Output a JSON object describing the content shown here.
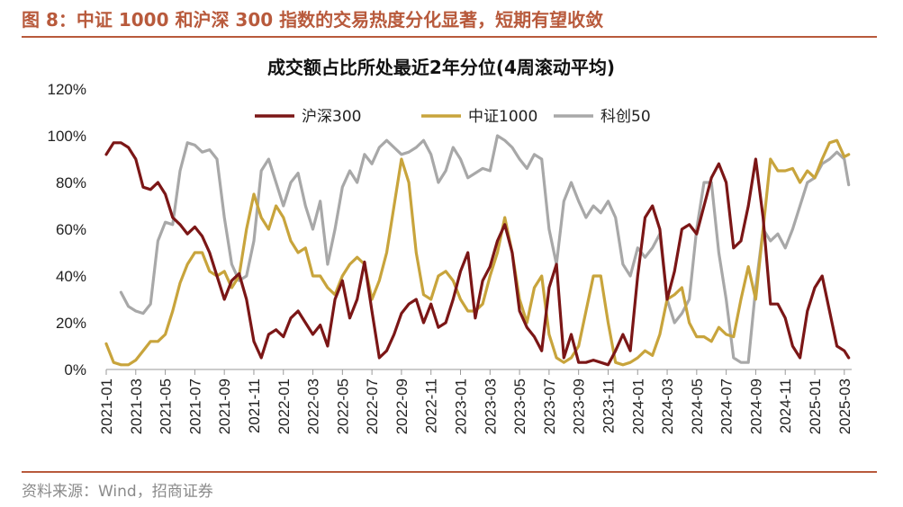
{
  "figure": {
    "title": "图 8：中证 1000 和沪深 300 指数的交易热度分化显著，短期有望收敛",
    "source": "资料来源：Wind，招商证券"
  },
  "colors": {
    "accent": "#b85a3c",
    "hs300": "#7b1616",
    "zz1000": "#c8a43c",
    "kc50": "#a8a8a8"
  },
  "chart_data": {
    "type": "line",
    "title": "成交额占比所处最近2年分位(4周滚动平均)",
    "xlabel": "",
    "ylabel": "",
    "ylim": [
      0,
      120
    ],
    "yticks": [
      "0%",
      "20%",
      "40%",
      "60%",
      "80%",
      "100%",
      "120%"
    ],
    "xlim": [
      0,
      50.5
    ],
    "categories": [
      "2021-01",
      "2021-03",
      "2021-05",
      "2021-07",
      "2021-09",
      "2021-11",
      "2022-01",
      "2022-03",
      "2022-05",
      "2022-07",
      "2022-09",
      "2022-11",
      "2023-01",
      "2023-03",
      "2023-05",
      "2023-07",
      "2023-09",
      "2023-11",
      "2024-01",
      "2024-03",
      "2024-05",
      "2024-07",
      "2024-09",
      "2024-11",
      "2025-01",
      "2025-03"
    ],
    "legend": [
      "沪深300",
      "中证1000",
      "科创50"
    ],
    "series": [
      {
        "name": "沪深300",
        "x": [
          0,
          0.5,
          1,
          1.5,
          2,
          2.5,
          3,
          3.5,
          4,
          4.5,
          5,
          5.5,
          6,
          6.5,
          7,
          7.5,
          8,
          8.5,
          9,
          9.5,
          10,
          10.5,
          11,
          11.5,
          12,
          12.5,
          13,
          13.5,
          14,
          14.5,
          15,
          15.5,
          16,
          16.5,
          17,
          17.5,
          18,
          18.5,
          19,
          19.5,
          20,
          20.5,
          21,
          21.5,
          22,
          22.5,
          23,
          23.5,
          24,
          24.5,
          25,
          25.5,
          26,
          26.5,
          27,
          27.5,
          28,
          28.5,
          29,
          29.5,
          30,
          30.5,
          31,
          31.5,
          32,
          32.5,
          33,
          33.5,
          34,
          34.5,
          35,
          35.5,
          36,
          36.5,
          37,
          37.5,
          38,
          38.5,
          39,
          39.5,
          40,
          40.5,
          41,
          41.5,
          42,
          42.5,
          43,
          43.5,
          44,
          44.5,
          45,
          45.5,
          46,
          46.5,
          47,
          47.5,
          48,
          48.5,
          49,
          49.5,
          50,
          50.3
        ],
        "values": [
          92,
          97,
          97,
          95,
          90,
          78,
          77,
          80,
          75,
          65,
          62,
          58,
          61,
          57,
          50,
          40,
          30,
          38,
          41,
          30,
          12,
          5,
          15,
          17,
          14,
          22,
          25,
          20,
          15,
          19,
          10,
          30,
          38,
          22,
          30,
          46,
          25,
          5,
          8,
          15,
          24,
          28,
          30,
          20,
          28,
          18,
          20,
          30,
          42,
          50,
          22,
          38,
          44,
          55,
          62,
          50,
          25,
          18,
          14,
          8,
          35,
          45,
          5,
          15,
          3,
          3,
          4,
          3,
          2,
          8,
          15,
          8,
          40,
          65,
          70,
          60,
          30,
          42,
          60,
          62,
          58,
          70,
          82,
          88,
          80,
          52,
          55,
          70,
          90,
          65,
          28,
          28,
          22,
          10,
          5,
          25,
          35,
          40,
          25,
          10,
          8,
          5
        ]
      },
      {
        "name": "中证1000",
        "x": [
          0,
          0.5,
          1,
          1.5,
          2,
          2.5,
          3,
          3.5,
          4,
          4.5,
          5,
          5.5,
          6,
          6.5,
          7,
          7.5,
          8,
          8.5,
          9,
          9.5,
          10,
          10.5,
          11,
          11.5,
          12,
          12.5,
          13,
          13.5,
          14,
          14.5,
          15,
          15.5,
          16,
          16.5,
          17,
          17.5,
          18,
          18.5,
          19,
          19.5,
          20,
          20.5,
          21,
          21.5,
          22,
          22.5,
          23,
          23.5,
          24,
          24.5,
          25,
          25.5,
          26,
          26.5,
          27,
          27.5,
          28,
          28.5,
          29,
          29.5,
          30,
          30.5,
          31,
          31.5,
          32,
          32.5,
          33,
          33.5,
          34,
          34.5,
          35,
          35.5,
          36,
          36.5,
          37,
          37.5,
          38,
          38.5,
          39,
          39.5,
          40,
          40.5,
          41,
          41.5,
          42,
          42.5,
          43,
          43.5,
          44,
          44.5,
          45,
          45.5,
          46,
          46.5,
          47,
          47.5,
          48,
          48.5,
          49,
          49.5,
          50,
          50.3
        ],
        "values": [
          11,
          3,
          2,
          2,
          4,
          8,
          12,
          12,
          15,
          25,
          37,
          45,
          50,
          50,
          42,
          40,
          42,
          35,
          40,
          60,
          75,
          65,
          60,
          70,
          65,
          55,
          50,
          52,
          40,
          40,
          35,
          32,
          40,
          45,
          48,
          45,
          30,
          38,
          50,
          70,
          90,
          80,
          50,
          32,
          30,
          40,
          42,
          38,
          30,
          25,
          25,
          28,
          40,
          50,
          65,
          50,
          30,
          20,
          35,
          40,
          15,
          5,
          3,
          5,
          10,
          25,
          40,
          40,
          20,
          3,
          2,
          3,
          5,
          8,
          6,
          15,
          30,
          32,
          35,
          20,
          14,
          14,
          12,
          18,
          15,
          14,
          30,
          44,
          30,
          60,
          90,
          85,
          85,
          86,
          80,
          85,
          82,
          90,
          97,
          98,
          91,
          92
        ]
      },
      {
        "name": "科创50",
        "x": [
          1,
          1.5,
          2,
          2.5,
          3,
          3.5,
          4,
          4.5,
          5,
          5.5,
          6,
          6.5,
          7,
          7.5,
          8,
          8.5,
          9,
          9.5,
          10,
          10.5,
          11,
          11.5,
          12,
          12.5,
          13,
          13.5,
          14,
          14.5,
          15,
          15.5,
          16,
          16.5,
          17,
          17.5,
          18,
          18.5,
          19,
          19.5,
          20,
          20.5,
          21,
          21.5,
          22,
          22.5,
          23,
          23.5,
          24,
          24.5,
          25,
          25.5,
          26,
          26.5,
          27,
          27.5,
          28,
          28.5,
          29,
          29.5,
          30,
          30.5,
          31,
          31.5,
          32,
          32.5,
          33,
          33.5,
          34,
          34.5,
          35,
          35.5,
          36,
          36.5,
          37,
          37.5,
          38,
          38.5,
          39,
          39.5,
          40,
          40.5,
          41,
          41.5,
          42,
          42.5,
          43,
          43.5,
          44,
          44.5,
          45,
          45.5,
          46,
          46.5,
          47,
          47.5,
          48,
          48.5,
          49,
          49.5,
          50,
          50.3
        ],
        "values": [
          33,
          27,
          25,
          24,
          28,
          55,
          63,
          62,
          85,
          97,
          96,
          93,
          94,
          90,
          65,
          45,
          38,
          40,
          55,
          85,
          90,
          80,
          70,
          80,
          84,
          70,
          60,
          72,
          45,
          60,
          78,
          85,
          80,
          92,
          88,
          95,
          98,
          95,
          92,
          93,
          95,
          98,
          92,
          80,
          85,
          95,
          90,
          82,
          84,
          86,
          85,
          100,
          98,
          95,
          90,
          86,
          92,
          90,
          60,
          45,
          72,
          80,
          72,
          65,
          70,
          67,
          72,
          65,
          45,
          40,
          52,
          48,
          52,
          58,
          30,
          20,
          24,
          30,
          60,
          80,
          80,
          50,
          30,
          5,
          3,
          3,
          35,
          60,
          55,
          58,
          52,
          60,
          70,
          80,
          82,
          88,
          90,
          93,
          90,
          79
        ]
      }
    ]
  }
}
